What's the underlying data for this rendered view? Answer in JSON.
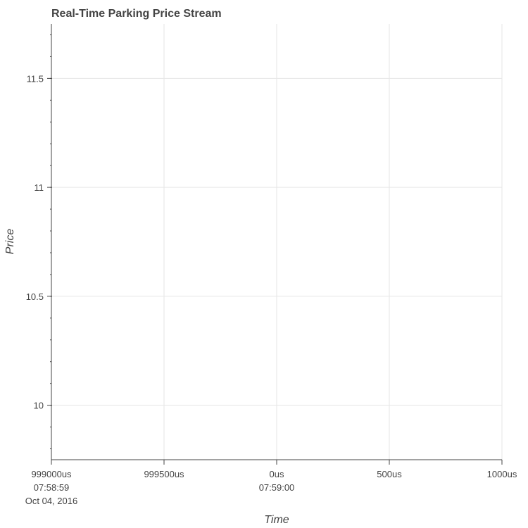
{
  "chart_data": {
    "type": "line",
    "title": "Real-Time Parking Price Stream",
    "xlabel": "Time",
    "ylabel": "Price",
    "grid": true,
    "ylim": [
      9.75,
      11.75
    ],
    "yticks": [
      {
        "value": 10,
        "label": "10"
      },
      {
        "value": 10.5,
        "label": "10.5"
      },
      {
        "value": 11,
        "label": "11"
      },
      {
        "value": 11.5,
        "label": "11.5"
      }
    ],
    "xticks": [
      {
        "lines": [
          "999000us",
          "07:58:59",
          "Oct 04, 2016"
        ]
      },
      {
        "lines": [
          "999500us"
        ]
      },
      {
        "lines": [
          "0us",
          "07:59:00"
        ]
      },
      {
        "lines": [
          "500us"
        ]
      },
      {
        "lines": [
          "1000us"
        ]
      }
    ],
    "series": []
  },
  "colors": {
    "grid": "#e6e6e6",
    "axis": "#444444",
    "text": "#444444",
    "background": "#ffffff"
  }
}
